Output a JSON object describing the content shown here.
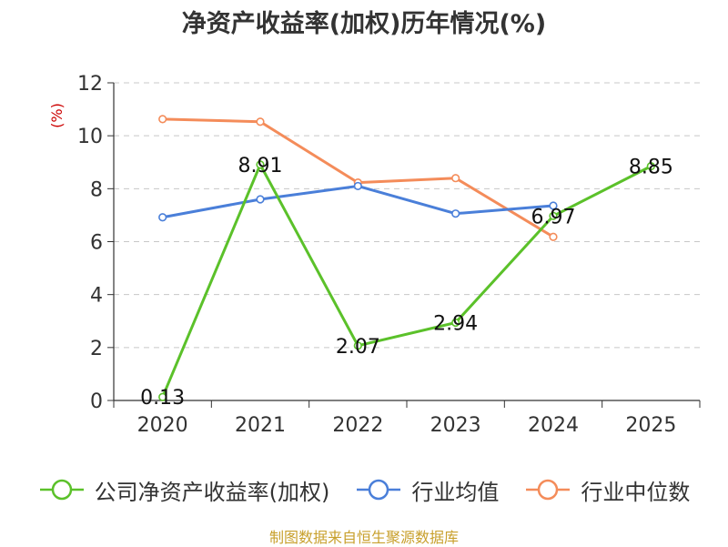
{
  "chart_data": {
    "type": "line",
    "title": "净资产收益率(加权)历年情况(%)",
    "ylabel": "(%)",
    "xlabel": "",
    "categories": [
      "2020",
      "2021",
      "2022",
      "2023",
      "2024",
      "2025"
    ],
    "ylim": [
      0,
      12
    ],
    "yticks": [
      0,
      2,
      4,
      6,
      8,
      10,
      12
    ],
    "grid": true,
    "legend_position": "bottom",
    "series": [
      {
        "name": "公司净资产收益率(加权)",
        "color": "#5bc12a",
        "values": [
          0.13,
          8.91,
          2.07,
          2.94,
          6.97,
          8.85
        ],
        "labels": [
          "0.13",
          "8.91",
          "2.07",
          "2.94",
          "6.97",
          "8.85"
        ]
      },
      {
        "name": "行业均值",
        "color": "#4a7fd9",
        "values": [
          6.92,
          7.6,
          8.1,
          7.06,
          7.36,
          null
        ]
      },
      {
        "name": "行业中位数",
        "color": "#f48c5a",
        "values": [
          10.63,
          10.53,
          8.23,
          8.4,
          6.18,
          null
        ]
      }
    ],
    "source": "制图数据来自恒生聚源数据库"
  }
}
